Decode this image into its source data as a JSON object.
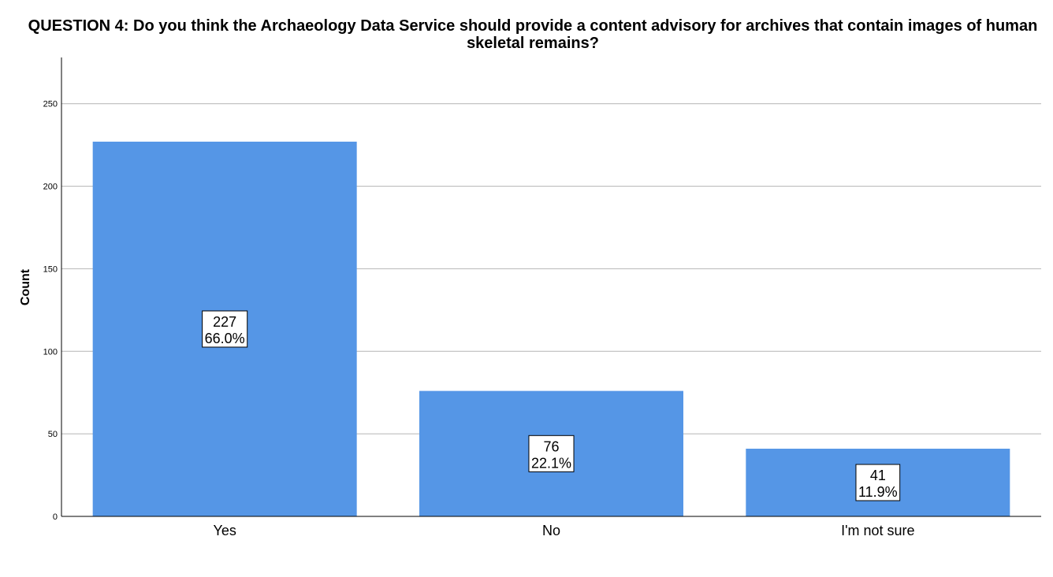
{
  "chart_data": {
    "type": "bar",
    "title": "QUESTION 4: Do you think the Archaeology Data Service should provide a content advisory for archives that contain images of human skeletal remains?",
    "xlabel": "",
    "ylabel": "Count",
    "categories": [
      "Yes",
      "No",
      "I'm not sure"
    ],
    "values": [
      227,
      76,
      41
    ],
    "data_labels": [
      {
        "count": "227",
        "percent": "66.0%"
      },
      {
        "count": "76",
        "percent": "22.1%"
      },
      {
        "count": "41",
        "percent": "11.9%"
      }
    ],
    "ylim": [
      0,
      278
    ],
    "yticks": [
      0,
      50,
      100,
      150,
      200,
      250
    ],
    "grid": true,
    "bar_color": "#5596e6"
  }
}
